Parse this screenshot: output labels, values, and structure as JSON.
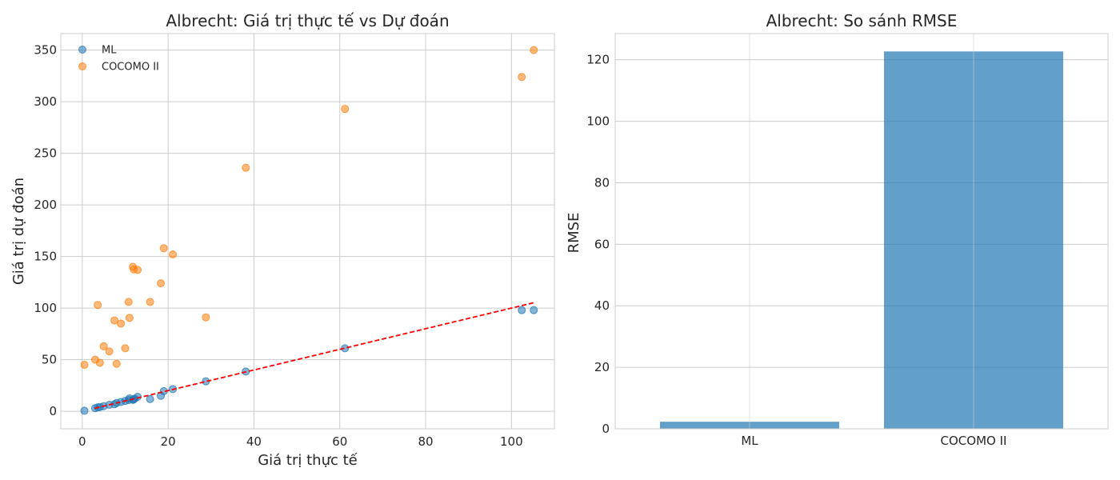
{
  "chart_data": [
    {
      "type": "scatter",
      "title": "Albrecht: Giá trị thực tế vs Dự đoán",
      "xlabel": "Giá trị thực tế",
      "ylabel": "Giá trị dự đoán",
      "xlim": [
        -5,
        110
      ],
      "ylim": [
        -17,
        366
      ],
      "xticks": [
        0,
        20,
        40,
        60,
        80,
        100
      ],
      "yticks": [
        0,
        50,
        100,
        150,
        200,
        250,
        300,
        350
      ],
      "grid": true,
      "legend": "top-left",
      "reference_line": {
        "style": "dashed",
        "color": "#ff0000",
        "x": [
          2.9,
          105.2
        ],
        "y": [
          2.9,
          105.2
        ]
      },
      "series": [
        {
          "name": "ML",
          "color": "#1f77b4",
          "x": [
            0.5,
            3.0,
            3.6,
            4.1,
            5.0,
            6.3,
            7.5,
            8.0,
            9.0,
            10.0,
            10.8,
            11.0,
            11.8,
            12.0,
            12.2,
            12.9,
            15.8,
            18.3,
            19.0,
            21.1,
            28.8,
            38.1,
            61.2,
            102.4,
            105.2
          ],
          "y": [
            0.5,
            3.0,
            3.8,
            4.1,
            4.9,
            6.3,
            6.8,
            8.0,
            9.0,
            10.0,
            10.8,
            12.5,
            11.0,
            11.5,
            12.2,
            14.0,
            11.8,
            15.0,
            19.5,
            21.5,
            29.0,
            38.5,
            61.0,
            98.0,
            98.0
          ]
        },
        {
          "name": "COCOMO II",
          "color": "#ff7f0e",
          "x": [
            0.5,
            3.0,
            3.6,
            4.1,
            5.0,
            6.3,
            7.5,
            8.0,
            9.0,
            10.0,
            10.8,
            11.0,
            11.8,
            12.0,
            12.9,
            15.8,
            18.3,
            19.0,
            21.1,
            28.8,
            38.1,
            61.2,
            102.4,
            105.2
          ],
          "y": [
            45.0,
            50.0,
            103.0,
            47.0,
            63.0,
            58.0,
            88.0,
            46.0,
            85.0,
            61.0,
            106.0,
            90.5,
            140.0,
            137.5,
            137.0,
            106.0,
            124.0,
            158.0,
            152.0,
            91.0,
            236.0,
            293.0,
            324.0,
            350.0
          ]
        }
      ]
    },
    {
      "type": "bar",
      "title": "Albrecht: So sánh RMSE",
      "xlabel": "",
      "ylabel": "RMSE",
      "categories": [
        "ML",
        "COCOMO II"
      ],
      "values": [
        2.3,
        122.7
      ],
      "ylim": [
        0,
        128.5
      ],
      "yticks": [
        0,
        20,
        40,
        60,
        80,
        100,
        120
      ],
      "grid": true,
      "color": "#1f77b4"
    }
  ]
}
